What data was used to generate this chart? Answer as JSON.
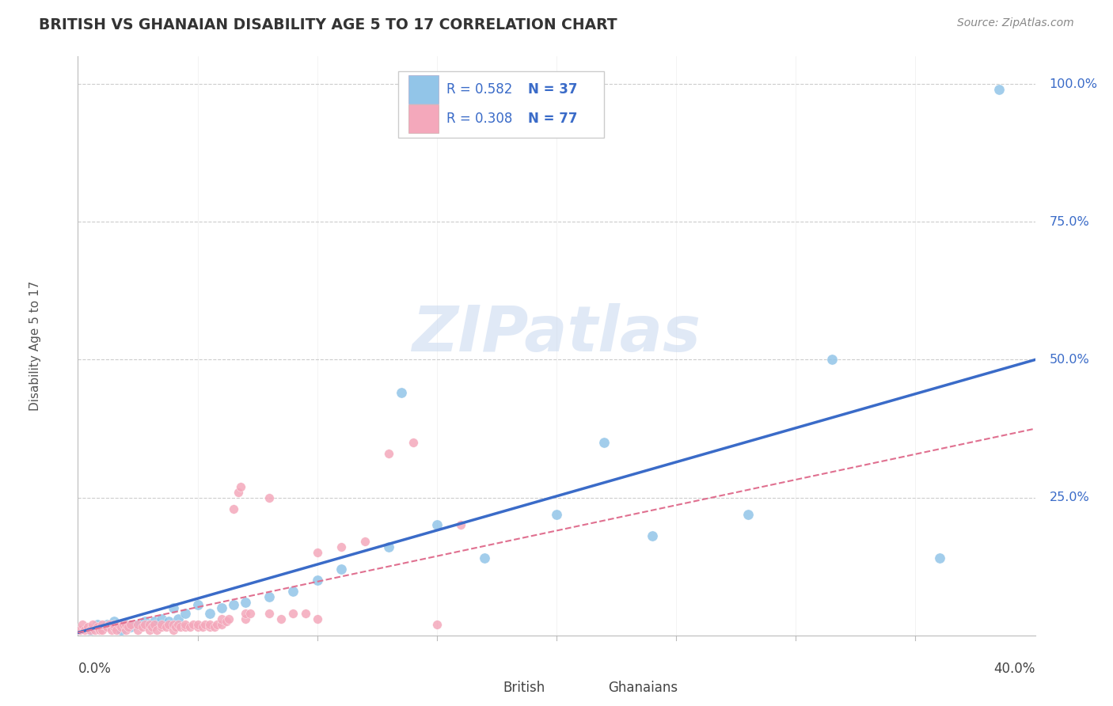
{
  "title": "BRITISH VS GHANAIAN DISABILITY AGE 5 TO 17 CORRELATION CHART",
  "source": "Source: ZipAtlas.com",
  "ylabel": "Disability Age 5 to 17",
  "xlim": [
    0.0,
    0.4
  ],
  "ylim": [
    0.0,
    1.05
  ],
  "british_R": 0.582,
  "british_N": 37,
  "ghanaian_R": 0.308,
  "ghanaian_N": 77,
  "british_color": "#92C5E8",
  "ghanaian_color": "#F4A8BB",
  "british_line_color": "#3A6BC8",
  "ghanaian_line_color": "#E07090",
  "watermark": "ZIPatlas",
  "british_line": [
    0.0,
    0.005,
    0.4,
    0.5
  ],
  "ghanaian_line": [
    0.0,
    0.005,
    0.4,
    0.375
  ],
  "british_x": [
    0.385,
    0.135,
    0.22,
    0.2,
    0.315,
    0.005,
    0.008,
    0.01,
    0.012,
    0.015,
    0.018,
    0.02,
    0.022,
    0.025,
    0.028,
    0.03,
    0.032,
    0.035,
    0.038,
    0.04,
    0.042,
    0.045,
    0.05,
    0.055,
    0.06,
    0.065,
    0.07,
    0.08,
    0.09,
    0.1,
    0.11,
    0.13,
    0.15,
    0.17,
    0.24,
    0.28,
    0.36
  ],
  "british_y": [
    0.99,
    0.44,
    0.35,
    0.22,
    0.5,
    0.01,
    0.02,
    0.015,
    0.02,
    0.025,
    0.01,
    0.02,
    0.015,
    0.02,
    0.025,
    0.02,
    0.025,
    0.03,
    0.025,
    0.05,
    0.03,
    0.04,
    0.055,
    0.04,
    0.05,
    0.055,
    0.06,
    0.07,
    0.08,
    0.1,
    0.12,
    0.16,
    0.2,
    0.14,
    0.18,
    0.22,
    0.14
  ],
  "ghanaian_x": [
    0.001,
    0.002,
    0.003,
    0.004,
    0.005,
    0.006,
    0.007,
    0.008,
    0.009,
    0.01,
    0.01,
    0.012,
    0.013,
    0.014,
    0.015,
    0.015,
    0.016,
    0.017,
    0.018,
    0.019,
    0.02,
    0.02,
    0.021,
    0.022,
    0.025,
    0.025,
    0.027,
    0.028,
    0.03,
    0.03,
    0.031,
    0.032,
    0.033,
    0.035,
    0.035,
    0.037,
    0.038,
    0.04,
    0.04,
    0.041,
    0.042,
    0.043,
    0.045,
    0.045,
    0.047,
    0.048,
    0.05,
    0.05,
    0.052,
    0.053,
    0.055,
    0.055,
    0.057,
    0.058,
    0.06,
    0.06,
    0.062,
    0.063,
    0.065,
    0.067,
    0.068,
    0.07,
    0.07,
    0.072,
    0.08,
    0.08,
    0.085,
    0.09,
    0.095,
    0.1,
    0.1,
    0.11,
    0.12,
    0.13,
    0.14,
    0.15,
    0.16
  ],
  "ghanaian_y": [
    0.01,
    0.02,
    0.01,
    0.015,
    0.01,
    0.02,
    0.01,
    0.015,
    0.01,
    0.01,
    0.02,
    0.015,
    0.02,
    0.01,
    0.015,
    0.02,
    0.01,
    0.02,
    0.015,
    0.02,
    0.01,
    0.02,
    0.015,
    0.02,
    0.01,
    0.02,
    0.015,
    0.02,
    0.01,
    0.02,
    0.015,
    0.02,
    0.01,
    0.015,
    0.02,
    0.015,
    0.02,
    0.01,
    0.02,
    0.015,
    0.02,
    0.015,
    0.015,
    0.02,
    0.015,
    0.02,
    0.015,
    0.02,
    0.015,
    0.02,
    0.015,
    0.02,
    0.015,
    0.02,
    0.02,
    0.03,
    0.025,
    0.03,
    0.23,
    0.26,
    0.27,
    0.03,
    0.04,
    0.04,
    0.04,
    0.25,
    0.03,
    0.04,
    0.04,
    0.03,
    0.15,
    0.16,
    0.17,
    0.33,
    0.35,
    0.02,
    0.2
  ]
}
